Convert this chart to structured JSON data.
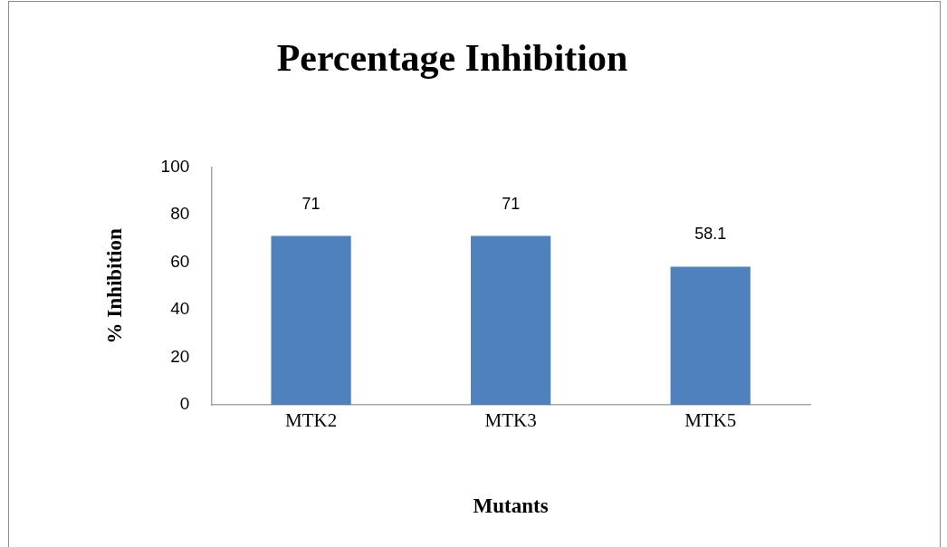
{
  "chart_data": {
    "type": "bar",
    "title": "Percentage Inhibition",
    "xlabel": "Mutants",
    "ylabel": "% Inhibition",
    "categories": [
      "MTK2",
      "MTK3",
      "MTK5"
    ],
    "values": [
      71,
      71,
      58.1
    ],
    "color": "#4f81bd",
    "ylim": [
      0,
      100
    ],
    "yticks": [
      0,
      20,
      40,
      60,
      80,
      100
    ],
    "data_labels": true
  }
}
